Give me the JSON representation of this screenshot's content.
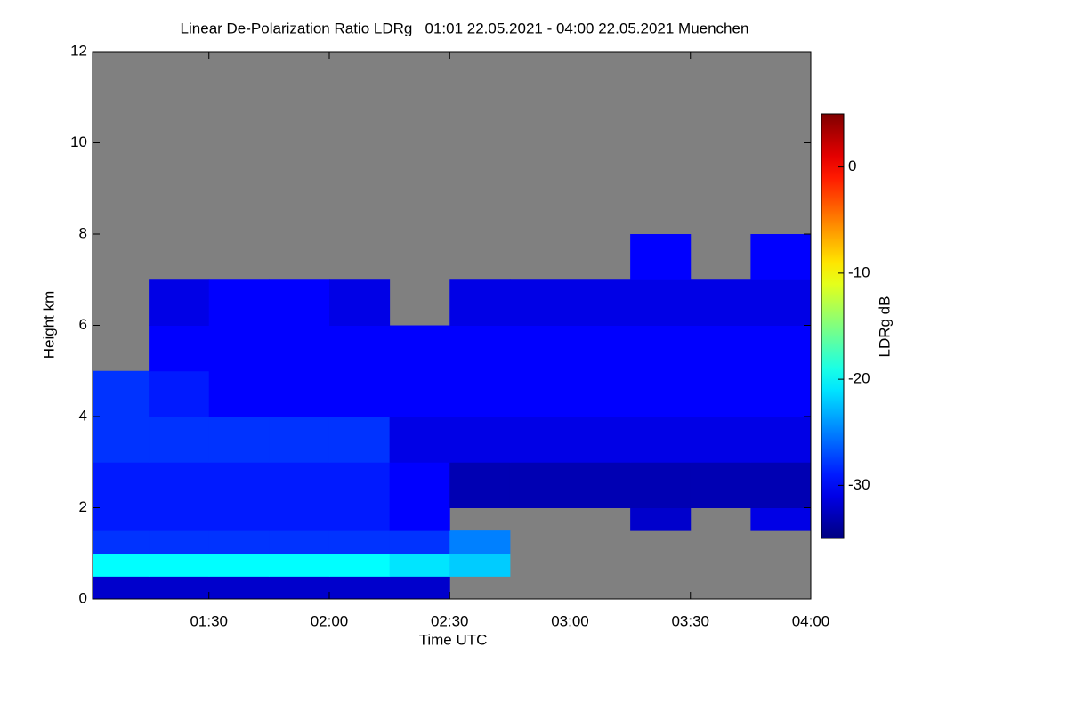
{
  "chart_data": {
    "type": "heatmap",
    "title": "Linear De-Polarization Ratio LDRg   01:01 22.05.2021 - 04:00 22.05.2021 Muenchen",
    "x_label": "Time UTC",
    "y_label": "Height km",
    "colorbar_label": "LDRg dB",
    "xlim": [
      61,
      240
    ],
    "xticks": [
      {
        "value": 90,
        "label": "01:30"
      },
      {
        "value": 120,
        "label": "02:00"
      },
      {
        "value": 150,
        "label": "02:30"
      },
      {
        "value": 180,
        "label": "03:00"
      },
      {
        "value": 210,
        "label": "03:30"
      },
      {
        "value": 240,
        "label": "04:00"
      }
    ],
    "ylim": [
      0,
      12
    ],
    "yticks": [
      0,
      2,
      4,
      6,
      8,
      10,
      12
    ],
    "clim": [
      -35,
      5
    ],
    "cticks": [
      0,
      -10,
      -20,
      -30
    ],
    "colormap": "jet",
    "missing_color": "#808080",
    "x_bins": [
      61,
      75,
      90,
      105,
      120,
      135,
      150,
      165,
      180,
      195,
      210,
      225,
      240
    ],
    "y_bins": [
      0,
      0.5,
      1,
      1.5,
      2,
      3,
      4,
      5,
      6,
      7,
      8,
      10,
      12
    ],
    "z": [
      [
        -32,
        -32,
        -32,
        -32,
        -32,
        -32,
        null,
        null,
        null,
        null,
        null,
        null
      ],
      [
        -20,
        -20,
        -20,
        -20,
        -20,
        -21,
        -22,
        null,
        null,
        null,
        null,
        null
      ],
      [
        -28,
        -28,
        -28,
        -28,
        -28,
        -28,
        -25,
        null,
        null,
        null,
        null,
        null
      ],
      [
        -29,
        -29,
        -29,
        -29,
        -29,
        -30,
        null,
        null,
        null,
        -32,
        null,
        -31
      ],
      [
        -29,
        -29,
        -29,
        -29,
        -29,
        -30,
        -33,
        -33,
        -33,
        -33,
        -33,
        -33
      ],
      [
        -28,
        -28,
        -28,
        -28,
        -28,
        -31,
        -31,
        -31,
        -31,
        -31,
        -31,
        -31
      ],
      [
        -28,
        -29,
        -30,
        -30,
        -30,
        -30,
        -30,
        -30,
        -30,
        -30,
        -30,
        -30
      ],
      [
        null,
        -30,
        -30,
        -30,
        -30,
        -30,
        -30,
        -30,
        -30,
        -30,
        -30,
        -30
      ],
      [
        null,
        -31,
        -30,
        -30,
        -31,
        null,
        -31,
        -31,
        -31,
        -31,
        -31,
        -31
      ],
      [
        null,
        null,
        null,
        null,
        null,
        null,
        null,
        null,
        null,
        -30,
        null,
        -30
      ],
      [
        null,
        null,
        null,
        null,
        null,
        null,
        null,
        null,
        null,
        null,
        null,
        null
      ],
      [
        null,
        null,
        null,
        null,
        null,
        null,
        null,
        null,
        null,
        null,
        null,
        null
      ]
    ]
  }
}
